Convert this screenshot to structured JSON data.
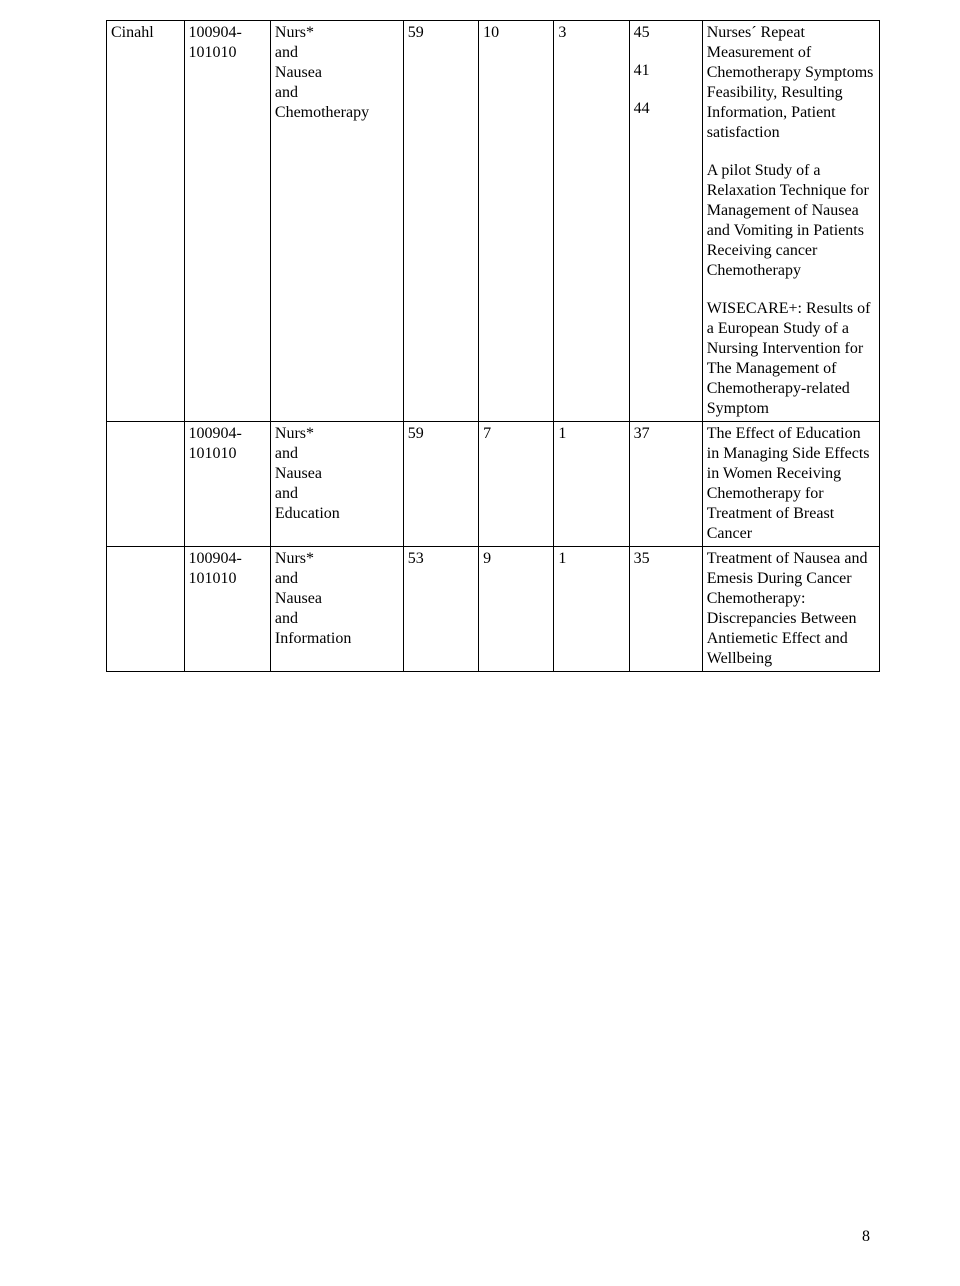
{
  "page_number": "8",
  "columns": {
    "database_width": 70,
    "date_width": 78,
    "terms_width": 120,
    "n1_width": 68,
    "n2_width": 68,
    "n3_width": 68,
    "n4_width": 66,
    "desc_width": 160
  },
  "rows": [
    {
      "database": "Cinahl",
      "date": "100904-101010",
      "terms": "Nurs*\nand\nNausea\nand\nChemotherapy",
      "n1": "59",
      "n2": "10",
      "n3": "3",
      "results": [
        {
          "n4": "45",
          "desc": "Nurses´ Repeat Measurement of Chemotherapy Symptoms Feasibility, Resulting Information, Patient satisfaction"
        },
        {
          "n4": "41",
          "desc": "A pilot Study of a Relaxation Technique for Management of Nausea and Vomiting in Patients Receiving cancer Chemotherapy"
        },
        {
          "n4": "44",
          "desc": "WISECARE+: Results of a European Study of a Nursing Intervention for The Management of Chemotherapy-related Symptom"
        }
      ]
    },
    {
      "database": "",
      "date": "100904-101010",
      "terms": "Nurs*\nand\nNausea\nand\nEducation",
      "n1": "59",
      "n2": "7",
      "n3": "1",
      "results": [
        {
          "n4": "37",
          "desc": "The Effect of Education in Managing Side Effects in Women Receiving Chemotherapy for Treatment of Breast Cancer"
        }
      ]
    },
    {
      "database": "",
      "date": "100904-101010",
      "terms": "Nurs*\nand\nNausea\nand\nInformation",
      "n1": "53",
      "n2": "9",
      "n3": "1",
      "results": [
        {
          "n4": "35",
          "desc": "Treatment of Nausea and Emesis During Cancer Chemotherapy: Discrepancies Between Antiemetic Effect and Wellbeing"
        }
      ]
    }
  ]
}
